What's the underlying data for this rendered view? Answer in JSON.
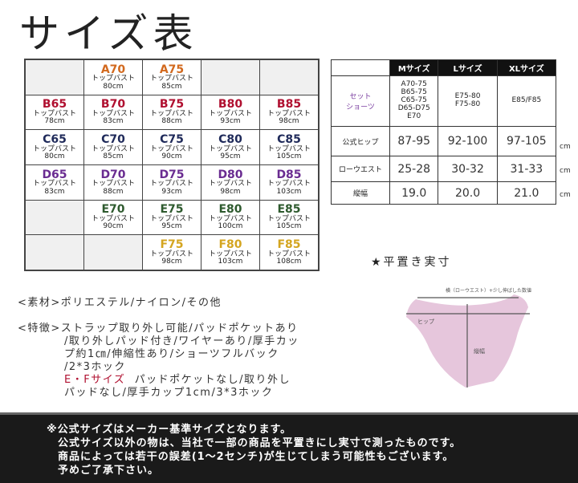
{
  "title": "サイズ表",
  "bra_grid": {
    "label": "トップバスト",
    "colors": {
      "A": "#d2691e",
      "B": "#b01030",
      "C": "#1f2a5a",
      "D": "#6a2c91",
      "E": "#2e5a2e",
      "F": "#d4a520"
    },
    "rows": [
      [
        null,
        {
          "code": "A70",
          "cup": "A",
          "val": "80cm"
        },
        {
          "code": "A75",
          "cup": "A",
          "val": "85cm"
        },
        null,
        null
      ],
      [
        {
          "code": "B65",
          "cup": "B",
          "val": "78cm"
        },
        {
          "code": "B70",
          "cup": "B",
          "val": "83cm"
        },
        {
          "code": "B75",
          "cup": "B",
          "val": "88cm"
        },
        {
          "code": "B80",
          "cup": "B",
          "val": "93cm"
        },
        {
          "code": "B85",
          "cup": "B",
          "val": "98cm"
        }
      ],
      [
        {
          "code": "C65",
          "cup": "C",
          "val": "80cm"
        },
        {
          "code": "C70",
          "cup": "C",
          "val": "85cm"
        },
        {
          "code": "C75",
          "cup": "C",
          "val": "90cm"
        },
        {
          "code": "C80",
          "cup": "C",
          "val": "95cm"
        },
        {
          "code": "C85",
          "cup": "C",
          "val": "105cm"
        }
      ],
      [
        {
          "code": "D65",
          "cup": "D",
          "val": "83cm"
        },
        {
          "code": "D70",
          "cup": "D",
          "val": "88cm"
        },
        {
          "code": "D75",
          "cup": "D",
          "val": "93cm"
        },
        {
          "code": "D80",
          "cup": "D",
          "val": "98cm"
        },
        {
          "code": "D85",
          "cup": "D",
          "val": "103cm"
        }
      ],
      [
        null,
        {
          "code": "E70",
          "cup": "E",
          "val": "90cm"
        },
        {
          "code": "E75",
          "cup": "E",
          "val": "95cm"
        },
        {
          "code": "E80",
          "cup": "E",
          "val": "100cm"
        },
        {
          "code": "E85",
          "cup": "E",
          "val": "105cm"
        }
      ],
      [
        null,
        null,
        {
          "code": "F75",
          "cup": "F",
          "val": "98cm"
        },
        {
          "code": "F80",
          "cup": "F",
          "val": "103cm"
        },
        {
          "code": "F85",
          "cup": "F",
          "val": "108cm"
        }
      ]
    ]
  },
  "shorts": {
    "headers": [
      "Mサイズ",
      "Lサイズ",
      "XLサイズ"
    ],
    "set_label_1": "セット",
    "set_label_2": "ショーツ",
    "set_values": [
      [
        "A70-75",
        "B65-75",
        "C65-75",
        "D65-D75",
        "E70"
      ],
      [
        "E75-80",
        "F75-80"
      ],
      [
        "E85/F85"
      ]
    ],
    "rows": [
      {
        "label": "公式ヒップ",
        "values": [
          "87-95",
          "92-100",
          "97-105"
        ],
        "unit": "cm"
      },
      {
        "label": "ローウエスト",
        "values": [
          "25-28",
          "30-32",
          "31-33"
        ],
        "unit": "cm"
      },
      {
        "label": "縦幅",
        "values": [
          "19.0",
          "20.0",
          "21.0"
        ],
        "unit": "cm"
      }
    ]
  },
  "diagram": {
    "heading": "★平置き実寸",
    "top_label": "横（ローウエスト）+少し伸ばした数値",
    "hip_label": "ヒップ",
    "height_label": "縦幅",
    "fill": "#e6c6dc"
  },
  "specs": {
    "material_label": "<素材>",
    "material": "ポリエステル/ナイロン/その他",
    "features_label": "<特徴>",
    "features_lines": [
      "ストラップ取り外し可能/パッドポケットあり",
      "/取り外しパッド付き/ワイヤーあり/厚手カッ",
      "プ約1㎝/伸縮性あり/ショーツフルバック",
      "/2*3ホック"
    ],
    "ef_label": "E・Fサイズ",
    "ef_lines": [
      "パッドポケットなし/取り外し",
      "パッドなし/厚手カップ1cm/3*3ホック"
    ]
  },
  "footer": [
    "※公式サイズはメーカー基準サイズとなります。",
    "公式サイズ以外の物は、当社で一部の商品を平置きにし実寸で測ったものです。",
    "商品によっては若干の誤差(1～2センチ)が生じてしまう可能性もございます。",
    "予めご了承下さい。"
  ]
}
